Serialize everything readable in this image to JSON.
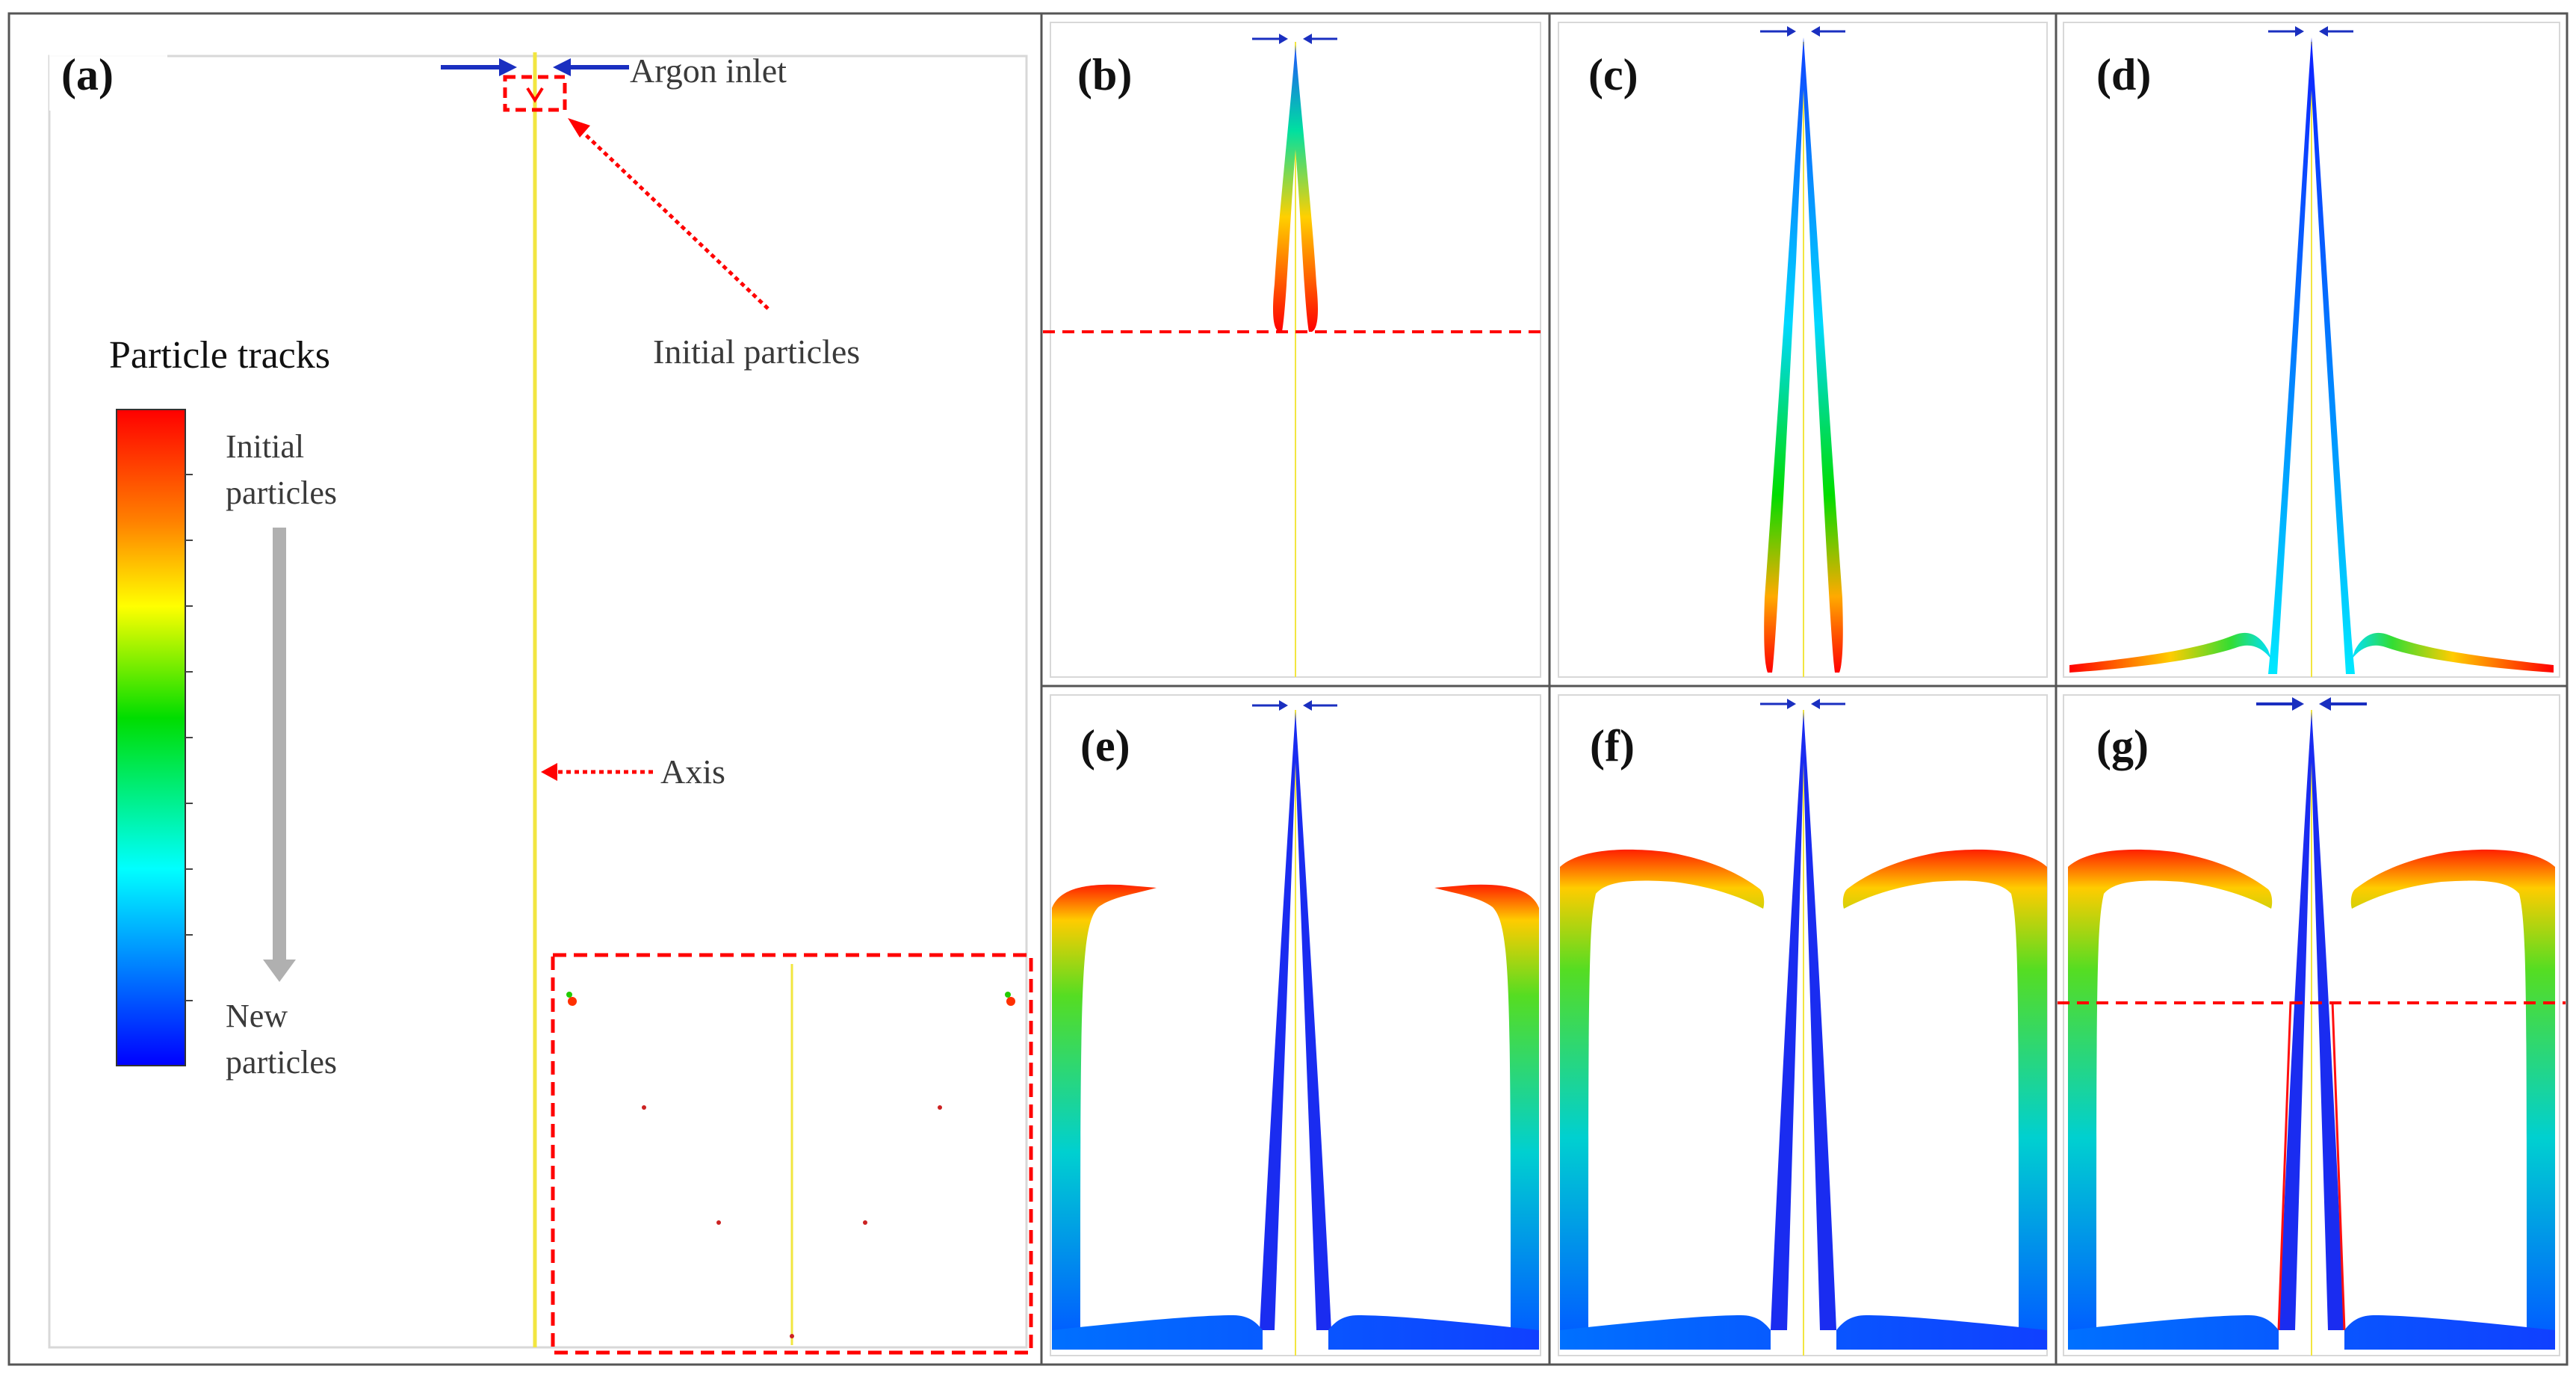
{
  "figure": {
    "panel_labels": [
      "(a)",
      "(b)",
      "(c)",
      "(d)",
      "(e)",
      "(f)",
      "(g)"
    ],
    "annotations": {
      "argon_inlet": "Argon inlet",
      "initial_particles": "Initial particles",
      "axis": "Axis"
    },
    "legend": {
      "title": "Particle tracks",
      "top_label_line1": "Initial",
      "top_label_line2": "particles",
      "bottom_label_line1": "New",
      "bottom_label_line2": "particles",
      "colors": [
        "#ff0000",
        "#ff8000",
        "#ffff00",
        "#00dd00",
        "#00ffff",
        "#0080ff",
        "#0000ff"
      ]
    },
    "colors": {
      "border": "#555555",
      "annotation": "#ff0000",
      "inlet_arrow": "#1a2fc0",
      "axis_line": "#f2e640"
    }
  }
}
